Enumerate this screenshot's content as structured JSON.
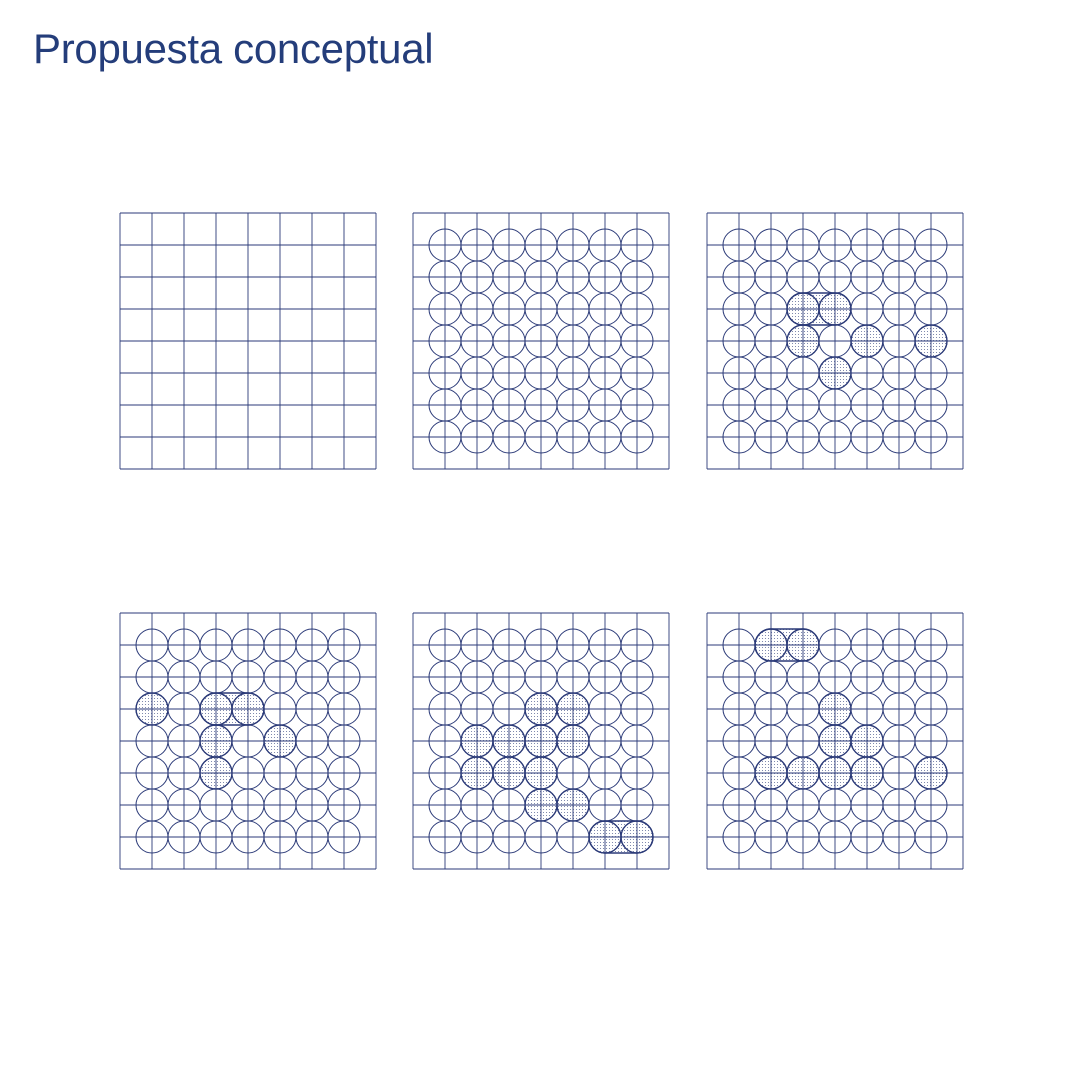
{
  "page": {
    "title": "Propuesta conceptual"
  },
  "colors": {
    "line": "#2b3a78",
    "accent": "#243d7a",
    "fill_dot": "#2b3a78"
  },
  "diagram": {
    "grid_cells": 8,
    "circle_cells": 7,
    "panels": [
      {
        "id": "panel-1-grid",
        "stage": 1,
        "show_circles": false,
        "filled": [],
        "shapes": []
      },
      {
        "id": "panel-2-circles",
        "stage": 2,
        "show_circles": true,
        "filled": [],
        "shapes": []
      },
      {
        "id": "panel-3-cluster",
        "stage": 3,
        "show_circles": true,
        "filled": [
          [
            2,
            2
          ],
          [
            2,
            3
          ],
          [
            3,
            2
          ],
          [
            3,
            4
          ],
          [
            4,
            3
          ],
          [
            3,
            6
          ]
        ],
        "shapes": [
          {
            "type": "capsule",
            "row": 2,
            "col_start": 2,
            "col_end": 3
          }
        ]
      },
      {
        "id": "panel-4-cluster",
        "stage": 4,
        "show_circles": true,
        "filled": [
          [
            2,
            0
          ],
          [
            2,
            2
          ],
          [
            2,
            3
          ],
          [
            3,
            2
          ],
          [
            3,
            4
          ],
          [
            4,
            2
          ]
        ],
        "shapes": [
          {
            "type": "capsule",
            "row": 2,
            "col_start": 2,
            "col_end": 3
          }
        ]
      },
      {
        "id": "panel-5-cluster",
        "stage": 5,
        "show_circles": true,
        "filled": [
          [
            2,
            3
          ],
          [
            2,
            4
          ],
          [
            3,
            1
          ],
          [
            3,
            2
          ],
          [
            3,
            3
          ],
          [
            3,
            4
          ],
          [
            4,
            1
          ],
          [
            4,
            2
          ],
          [
            4,
            3
          ],
          [
            5,
            3
          ],
          [
            5,
            4
          ],
          [
            6,
            5
          ],
          [
            6,
            6
          ]
        ],
        "shapes": [
          {
            "type": "capsule",
            "row": 6,
            "col_start": 5,
            "col_end": 6
          }
        ]
      },
      {
        "id": "panel-6-cluster",
        "stage": 6,
        "show_circles": true,
        "filled": [
          [
            0,
            1
          ],
          [
            0,
            2
          ],
          [
            2,
            3
          ],
          [
            3,
            3
          ],
          [
            3,
            4
          ],
          [
            4,
            1
          ],
          [
            4,
            2
          ],
          [
            4,
            3
          ],
          [
            4,
            4
          ],
          [
            4,
            6
          ]
        ],
        "shapes": [
          {
            "type": "capsule",
            "row": 0,
            "col_start": 1,
            "col_end": 2
          }
        ]
      }
    ]
  }
}
